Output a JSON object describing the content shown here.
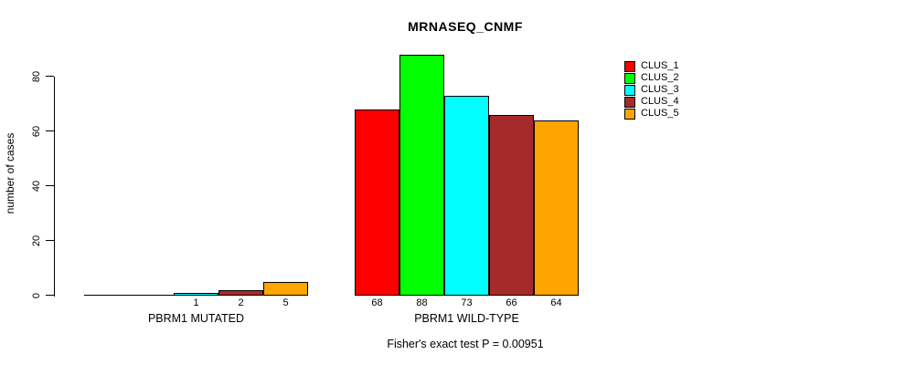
{
  "figure": {
    "background": "#ffffff",
    "axis_color": "#000000",
    "bar_border_color": "#000000",
    "text_color": "#000000"
  },
  "chart_data": {
    "type": "bar",
    "title": "MRNASEQ_CNMF",
    "xlabel": "",
    "ylabel": "number of cases",
    "ylim": [
      0,
      88
    ],
    "yticks": [
      0,
      20,
      40,
      60,
      80
    ],
    "grid": false,
    "legend_position": "top-right",
    "categories": [
      "PBRM1 MUTATED",
      "PBRM1 WILD-TYPE"
    ],
    "series": [
      {
        "name": "CLUS_1",
        "color": "#ff0000",
        "values": [
          0,
          68
        ]
      },
      {
        "name": "CLUS_2",
        "color": "#00ff00",
        "values": [
          0,
          88
        ]
      },
      {
        "name": "CLUS_3",
        "color": "#00ffff",
        "values": [
          1,
          73
        ]
      },
      {
        "name": "CLUS_4",
        "color": "#a52a2a",
        "values": [
          2,
          66
        ]
      },
      {
        "name": "CLUS_5",
        "color": "#ffa500",
        "values": [
          5,
          64
        ]
      }
    ],
    "bar_value_labels": [
      [
        "",
        "",
        "1",
        "2",
        "5"
      ],
      [
        "68",
        "88",
        "73",
        "66",
        "64"
      ]
    ],
    "annotation": "Fisher's exact test P = 0.00951"
  },
  "legend": {
    "items": [
      {
        "label": "CLUS_1",
        "color": "#ff0000"
      },
      {
        "label": "CLUS_2",
        "color": "#00ff00"
      },
      {
        "label": "CLUS_3",
        "color": "#00ffff"
      },
      {
        "label": "CLUS_4",
        "color": "#a52a2a"
      },
      {
        "label": "CLUS_5",
        "color": "#ffa500"
      }
    ]
  }
}
